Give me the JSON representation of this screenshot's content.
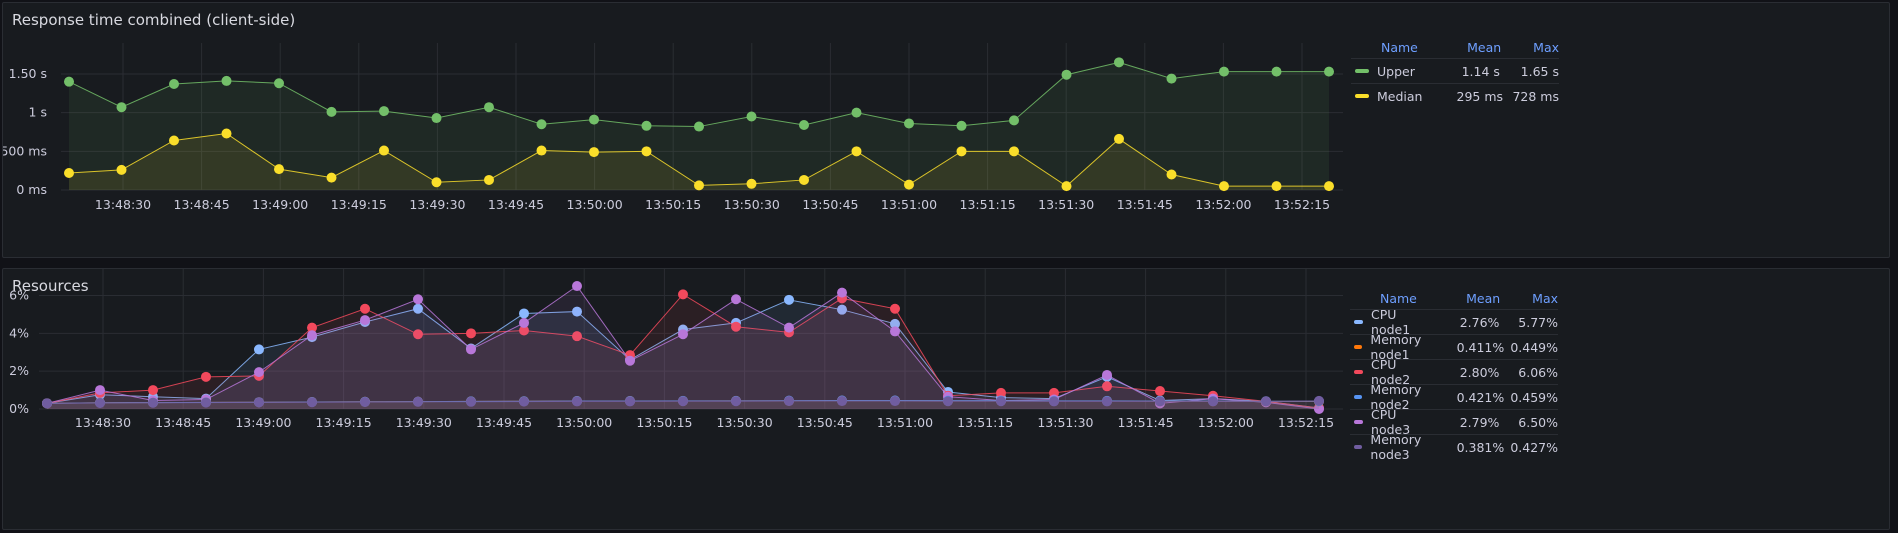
{
  "panels": [
    {
      "title": "Response time combined (client-side)",
      "legend": {
        "headers": {
          "name": "Name",
          "mean": "Mean",
          "max": "Max"
        },
        "rows": [
          {
            "name": "Upper",
            "mean": "1.14 s",
            "max": "1.65 s",
            "color": "#73bf69"
          },
          {
            "name": "Median",
            "mean": "295 ms",
            "max": "728 ms",
            "color": "#fade2a"
          }
        ]
      },
      "chart_data": {
        "type": "line",
        "ylim": [
          0,
          1.9
        ],
        "yticks": [
          {
            "v": 0,
            "label": "0 ms"
          },
          {
            "v": 0.5,
            "label": "500 ms"
          },
          {
            "v": 1,
            "label": "1 s"
          },
          {
            "v": 1.5,
            "label": "1.50 s"
          }
        ],
        "xticks": [
          "13:48:30",
          "13:48:45",
          "13:49:00",
          "13:49:15",
          "13:49:30",
          "13:49:45",
          "13:50:00",
          "13:50:15",
          "13:50:30",
          "13:50:45",
          "13:51:00",
          "13:51:15",
          "13:51:30",
          "13:51:45",
          "13:52:00",
          "13:52:15"
        ],
        "series": [
          {
            "name": "Upper",
            "color": "#73bf69",
            "values": [
              1.4,
              1.07,
              1.37,
              1.41,
              1.38,
              1.01,
              1.02,
              0.93,
              1.07,
              0.85,
              0.91,
              0.83,
              0.82,
              0.95,
              0.84,
              1.0,
              0.86,
              0.83,
              0.9,
              1.49,
              1.65,
              1.44,
              1.53,
              1.53,
              1.53
            ]
          },
          {
            "name": "Median",
            "color": "#fade2a",
            "values": [
              0.22,
              0.26,
              0.64,
              0.73,
              0.27,
              0.16,
              0.51,
              0.1,
              0.13,
              0.51,
              0.49,
              0.5,
              0.06,
              0.08,
              0.13,
              0.5,
              0.07,
              0.5,
              0.5,
              0.05,
              0.66,
              0.2,
              0.05,
              0.05,
              0.05
            ]
          }
        ]
      }
    },
    {
      "title": "Resources",
      "legend": {
        "headers": {
          "name": "Name",
          "mean": "Mean",
          "max": "Max"
        },
        "rows": [
          {
            "name": "CPU node1",
            "mean": "2.76%",
            "max": "5.77%",
            "color": "#8ab8ff"
          },
          {
            "name": "Memory node1",
            "mean": "0.411%",
            "max": "0.449%",
            "color": "#ff780a"
          },
          {
            "name": "CPU node2",
            "mean": "2.80%",
            "max": "6.06%",
            "color": "#f2495c"
          },
          {
            "name": "Memory node2",
            "mean": "0.421%",
            "max": "0.459%",
            "color": "#5794f2"
          },
          {
            "name": "CPU node3",
            "mean": "2.79%",
            "max": "6.50%",
            "color": "#b877d9"
          },
          {
            "name": "Memory node3",
            "mean": "0.381%",
            "max": "0.427%",
            "color": "#705da0"
          }
        ]
      },
      "chart_data": {
        "type": "line",
        "ylim": [
          0,
          7.4
        ],
        "yticks": [
          {
            "v": 0,
            "label": "0%"
          },
          {
            "v": 2,
            "label": "2%"
          },
          {
            "v": 4,
            "label": "4%"
          },
          {
            "v": 6,
            "label": "6%"
          }
        ],
        "xticks": [
          "13:48:30",
          "13:48:45",
          "13:49:00",
          "13:49:15",
          "13:49:30",
          "13:49:45",
          "13:50:00",
          "13:50:15",
          "13:50:30",
          "13:50:45",
          "13:51:00",
          "13:51:15",
          "13:51:30",
          "13:51:45",
          "13:52:00",
          "13:52:15"
        ],
        "series": [
          {
            "name": "CPU node1",
            "color": "#8ab8ff",
            "values": [
              0.3,
              0.75,
              0.65,
              0.55,
              3.15,
              3.8,
              4.6,
              5.3,
              3.2,
              5.05,
              5.15,
              2.6,
              4.2,
              4.55,
              5.77,
              5.25,
              4.5,
              0.9,
              0.6,
              0.55,
              1.7,
              0.45,
              0.55,
              0.4,
              0.05
            ]
          },
          {
            "name": "CPU node2",
            "color": "#f2495c",
            "values": [
              0.3,
              0.85,
              1.0,
              1.7,
              1.75,
              4.3,
              5.3,
              3.95,
              4.0,
              4.15,
              3.85,
              2.85,
              6.06,
              4.35,
              4.05,
              5.85,
              5.3,
              0.7,
              0.85,
              0.85,
              1.2,
              0.95,
              0.7,
              0.4,
              0.05
            ]
          },
          {
            "name": "CPU node3",
            "color": "#b877d9",
            "values": [
              0.3,
              1.0,
              0.45,
              0.5,
              1.95,
              3.9,
              4.7,
              5.8,
              3.15,
              4.55,
              6.5,
              2.55,
              3.95,
              5.8,
              4.3,
              6.15,
              4.1,
              0.65,
              0.45,
              0.5,
              1.8,
              0.3,
              0.55,
              0.35,
              0.0
            ]
          },
          {
            "name": "Memory node1",
            "color": "#ff780a",
            "values": [
              0.3,
              0.33,
              0.34,
              0.35,
              0.36,
              0.37,
              0.38,
              0.39,
              0.4,
              0.41,
              0.42,
              0.42,
              0.42,
              0.43,
              0.43,
              0.44,
              0.44,
              0.43,
              0.43,
              0.42,
              0.42,
              0.41,
              0.41,
              0.4,
              0.4
            ]
          },
          {
            "name": "Memory node2",
            "color": "#5794f2",
            "values": [
              0.3,
              0.33,
              0.34,
              0.35,
              0.36,
              0.37,
              0.38,
              0.39,
              0.4,
              0.41,
              0.42,
              0.42,
              0.43,
              0.43,
              0.44,
              0.45,
              0.45,
              0.44,
              0.44,
              0.43,
              0.43,
              0.42,
              0.42,
              0.41,
              0.41
            ]
          },
          {
            "name": "Memory node3",
            "color": "#705da0",
            "values": [
              0.3,
              0.32,
              0.33,
              0.34,
              0.35,
              0.36,
              0.37,
              0.38,
              0.38,
              0.39,
              0.4,
              0.4,
              0.41,
              0.41,
              0.42,
              0.42,
              0.42,
              0.41,
              0.41,
              0.4,
              0.4,
              0.4,
              0.4,
              0.4,
              0.43
            ]
          }
        ]
      }
    }
  ]
}
